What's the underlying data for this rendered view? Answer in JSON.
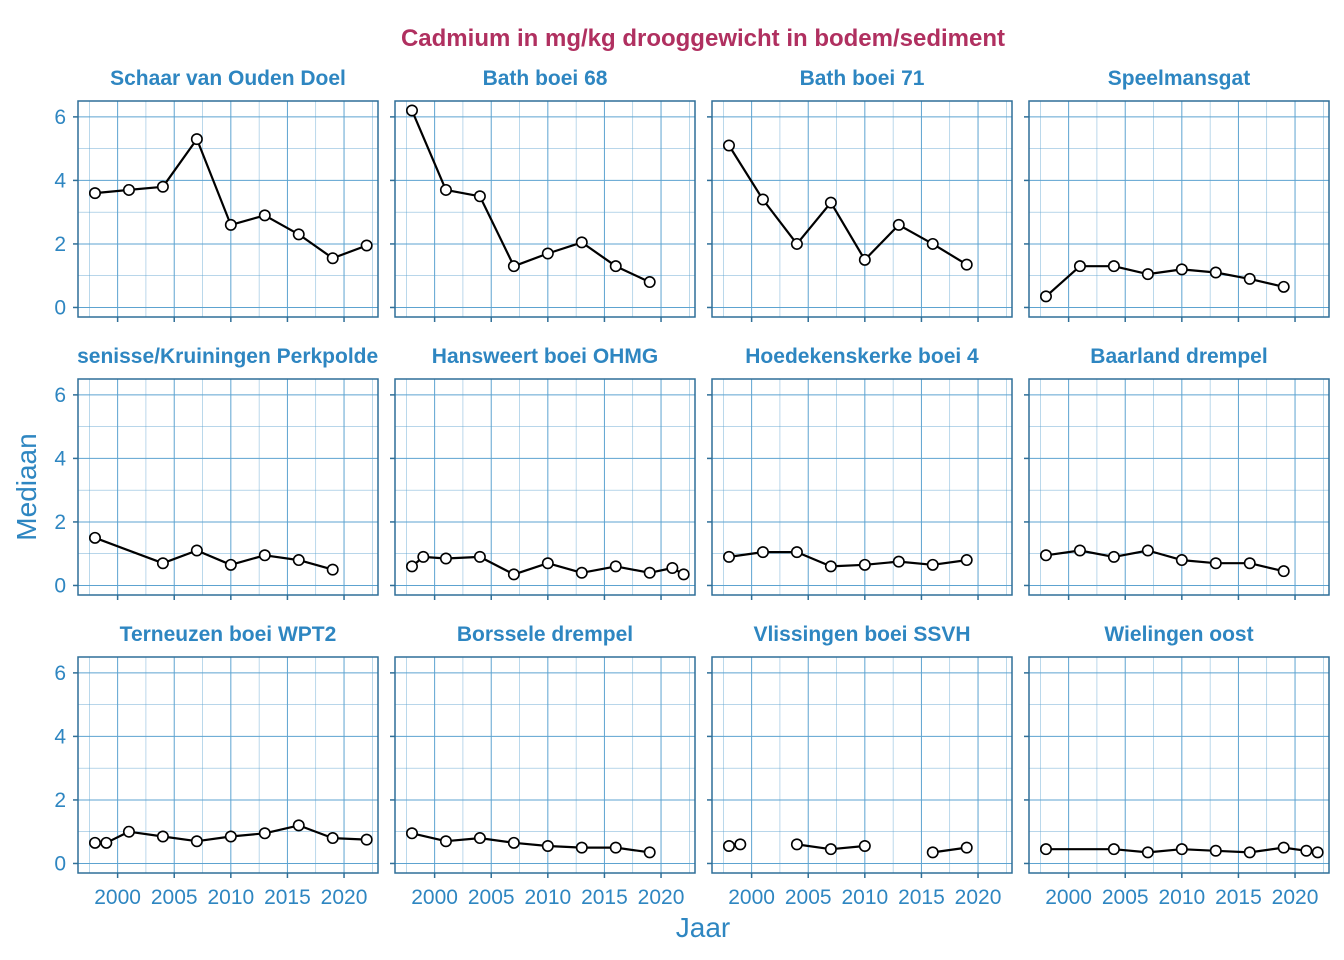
{
  "colors": {
    "title": "#b03060",
    "accent": "#2e86c1",
    "panel_border": "#2f6f98",
    "grid": "#5da3d0",
    "line": "#000000",
    "point_fill": "#ffffff"
  },
  "chart_data": {
    "type": "line",
    "title": "Cadmium in mg/kg drooggewicht in bodem/sediment",
    "xlabel": "Jaar",
    "ylabel": "Mediaan",
    "xlim": [
      1996.5,
      2023
    ],
    "ylim": [
      -0.3,
      6.5
    ],
    "x_ticks": [
      2000,
      2005,
      2010,
      2015,
      2020
    ],
    "y_ticks": [
      0,
      2,
      4,
      6
    ],
    "grid": true,
    "layout": "facet 3x4",
    "panels": [
      {
        "name": "Schaar van Ouden Doel",
        "x": [
          1998,
          2001,
          2004,
          2007,
          2010,
          2013,
          2016,
          2019,
          2022
        ],
        "y": [
          3.6,
          3.7,
          3.8,
          5.3,
          2.6,
          2.9,
          2.3,
          1.55,
          1.95
        ]
      },
      {
        "name": "Bath boei 68",
        "x": [
          1998,
          2001,
          2004,
          2007,
          2010,
          2013,
          2016,
          2019
        ],
        "y": [
          6.2,
          3.7,
          3.5,
          1.3,
          1.7,
          2.05,
          1.3,
          0.8
        ]
      },
      {
        "name": "Bath boei 71",
        "x": [
          1998,
          2001,
          2004,
          2007,
          2010,
          2013,
          2016,
          2019
        ],
        "y": [
          5.1,
          3.4,
          2.0,
          3.3,
          1.5,
          2.6,
          2.0,
          1.35
        ]
      },
      {
        "name": "Speelmansgat",
        "x": [
          1998,
          2001,
          2004,
          2007,
          2010,
          2013,
          2016,
          2019
        ],
        "y": [
          0.35,
          1.3,
          1.3,
          1.05,
          1.2,
          1.1,
          0.9,
          0.65
        ]
      },
      {
        "name": "Waarde/Ossenisse/Kruiningen Perkpolder (drempel)",
        "x": [
          1998,
          2004,
          2007,
          2010,
          2013,
          2016,
          2019
        ],
        "y": [
          1.5,
          0.7,
          1.1,
          0.65,
          0.95,
          0.8,
          0.5
        ]
      },
      {
        "name": "Hansweert boei OHMG",
        "x": [
          1998,
          1999,
          2001,
          2004,
          2007,
          2010,
          2013,
          2016,
          2019,
          2021,
          2022
        ],
        "y": [
          0.6,
          0.9,
          0.85,
          0.9,
          0.35,
          0.7,
          0.4,
          0.6,
          0.4,
          0.55,
          0.35
        ]
      },
      {
        "name": "Hoedekenskerke boei 4",
        "x": [
          1998,
          2001,
          2004,
          2007,
          2010,
          2013,
          2016,
          2019
        ],
        "y": [
          0.9,
          1.05,
          1.05,
          0.6,
          0.65,
          0.75,
          0.65,
          0.8
        ]
      },
      {
        "name": "Baarland drempel",
        "x": [
          1998,
          2001,
          2004,
          2007,
          2010,
          2013,
          2016,
          2019
        ],
        "y": [
          0.95,
          1.1,
          0.9,
          1.1,
          0.8,
          0.7,
          0.7,
          0.45
        ]
      },
      {
        "name": "Terneuzen boei WPT2",
        "x": [
          1998,
          1999,
          2001,
          2004,
          2007,
          2010,
          2013,
          2016,
          2019,
          2022
        ],
        "y": [
          0.65,
          0.65,
          1.0,
          0.85,
          0.7,
          0.85,
          0.95,
          1.2,
          0.8,
          0.75
        ]
      },
      {
        "name": "Borssele drempel",
        "x": [
          1998,
          2001,
          2004,
          2007,
          2010,
          2013,
          2016,
          2019
        ],
        "y": [
          0.95,
          0.7,
          0.8,
          0.65,
          0.55,
          0.5,
          0.5,
          0.35
        ]
      },
      {
        "name": "Vlissingen boei SSVH",
        "x": [
          1998,
          1999,
          2004,
          2007,
          2010,
          2016,
          2019
        ],
        "y": [
          0.55,
          0.6,
          0.6,
          0.45,
          0.55,
          0.35,
          0.5
        ],
        "segments": [
          [
            0,
            1
          ],
          [
            2,
            4
          ],
          [
            5,
            6
          ]
        ]
      },
      {
        "name": "Wielingen oost",
        "x": [
          1998,
          2004,
          2007,
          2010,
          2013,
          2016,
          2019,
          2021,
          2022
        ],
        "y": [
          0.45,
          0.45,
          0.35,
          0.45,
          0.4,
          0.35,
          0.5,
          0.4,
          0.35
        ]
      }
    ]
  }
}
